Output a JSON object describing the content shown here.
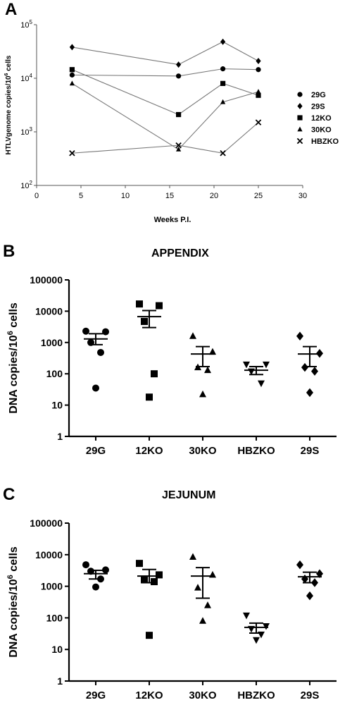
{
  "panel_labels": [
    "A",
    "B",
    "C"
  ],
  "chart_data": [
    {
      "type": "line",
      "ylabel": "HTLVgenome copies/10",
      "ylabel_sup": "6",
      "ylabel_tail": " cells",
      "xlabel": "Weeks P.I.",
      "xlim": [
        0,
        30
      ],
      "xticks": [
        0,
        5,
        10,
        15,
        20,
        25,
        30
      ],
      "ylim": [
        100,
        100000
      ],
      "yscale": "log",
      "yticks": [
        {
          "value": 100,
          "base": "10",
          "exp": "2"
        },
        {
          "value": 1000,
          "base": "10",
          "exp": "3"
        },
        {
          "value": 10000,
          "base": "10",
          "exp": "4"
        },
        {
          "value": 100000,
          "base": "10",
          "exp": "5"
        }
      ],
      "grid": false,
      "legend_position": "right",
      "series": [
        {
          "name": "29G",
          "marker": "circle",
          "x": [
            4,
            16,
            21,
            25
          ],
          "y": [
            11500,
            11000,
            15000,
            14500
          ]
        },
        {
          "name": "29S",
          "marker": "diamond",
          "x": [
            4,
            16,
            21,
            25
          ],
          "y": [
            38000,
            18000,
            48000,
            21000
          ]
        },
        {
          "name": "12KO",
          "marker": "square",
          "x": [
            4,
            16,
            21,
            25
          ],
          "y": [
            14500,
            2100,
            8000,
            4800
          ]
        },
        {
          "name": "30KO",
          "marker": "triangle",
          "x": [
            4,
            16,
            21,
            25
          ],
          "y": [
            8000,
            470,
            3600,
            5600
          ]
        },
        {
          "name": "HBZKO",
          "marker": "x",
          "x": [
            4,
            16,
            21,
            25
          ],
          "y": [
            400,
            560,
            400,
            1500
          ]
        }
      ]
    },
    {
      "type": "scatter",
      "title": "APPENDIX",
      "ylabel": "DNA copies/10",
      "ylabel_sup": "6",
      "ylabel_tail": " cells",
      "yscale": "log",
      "ylim": [
        1,
        100000
      ],
      "yticks": [
        "1",
        "10",
        "100",
        "1000",
        "10000",
        "100000"
      ],
      "categories": [
        "29G",
        "12KO",
        "30KO",
        "HBZKO",
        "29S"
      ],
      "groups": [
        {
          "category": "29G",
          "marker": "circle",
          "points": [
            2300,
            2200,
            1000,
            480,
            35
          ],
          "mean": 1300,
          "sem_low": 850,
          "sem_high": 1900
        },
        {
          "category": "12KO",
          "marker": "square",
          "points": [
            17000,
            15000,
            4700,
            100,
            18
          ],
          "mean": 6700,
          "sem_low": 3000,
          "sem_high": 10500
        },
        {
          "category": "30KO",
          "marker": "triangle",
          "points": [
            1600,
            500,
            160,
            130,
            22
          ],
          "mean": 430,
          "sem_low": 170,
          "sem_high": 740
        },
        {
          "category": "HBZKO",
          "marker": "triangle-down",
          "points": [
            200,
            200,
            120,
            50
          ],
          "mean": 130,
          "sem_low": 95,
          "sem_high": 170
        },
        {
          "category": "29S",
          "marker": "diamond",
          "points": [
            1600,
            450,
            160,
            120,
            25
          ],
          "mean": 430,
          "sem_low": 170,
          "sem_high": 740
        }
      ]
    },
    {
      "type": "scatter",
      "title": "JEJUNUM",
      "ylabel": "DNA copies/10",
      "ylabel_sup": "6",
      "ylabel_tail": " cells",
      "yscale": "log",
      "ylim": [
        1,
        100000
      ],
      "yticks": [
        "1",
        "10",
        "100",
        "1000",
        "10000",
        "100000"
      ],
      "categories": [
        "29G",
        "12KO",
        "30KO",
        "HBZKO",
        "29S"
      ],
      "groups": [
        {
          "category": "29G",
          "marker": "circle",
          "points": [
            4800,
            3300,
            3000,
            1700,
            950
          ],
          "mean": 2500,
          "sem_low": 1700,
          "sem_high": 3200
        },
        {
          "category": "12KO",
          "marker": "square",
          "points": [
            5300,
            2300,
            1600,
            1400,
            28
          ],
          "mean": 2100,
          "sem_low": 1300,
          "sem_high": 3400
        },
        {
          "category": "30KO",
          "marker": "triangle",
          "points": [
            8500,
            2300,
            900,
            250,
            80
          ],
          "mean": 2100,
          "sem_low": 420,
          "sem_high": 3900
        },
        {
          "category": "HBZKO",
          "marker": "triangle-down",
          "points": [
            120,
            55,
            45,
            30,
            20
          ],
          "mean": 50,
          "sem_low": 33,
          "sem_high": 68
        },
        {
          "category": "29S",
          "marker": "diamond",
          "points": [
            4800,
            2500,
            1700,
            1300,
            500
          ],
          "mean": 2000,
          "sem_low": 1300,
          "sem_high": 2800
        }
      ]
    }
  ]
}
